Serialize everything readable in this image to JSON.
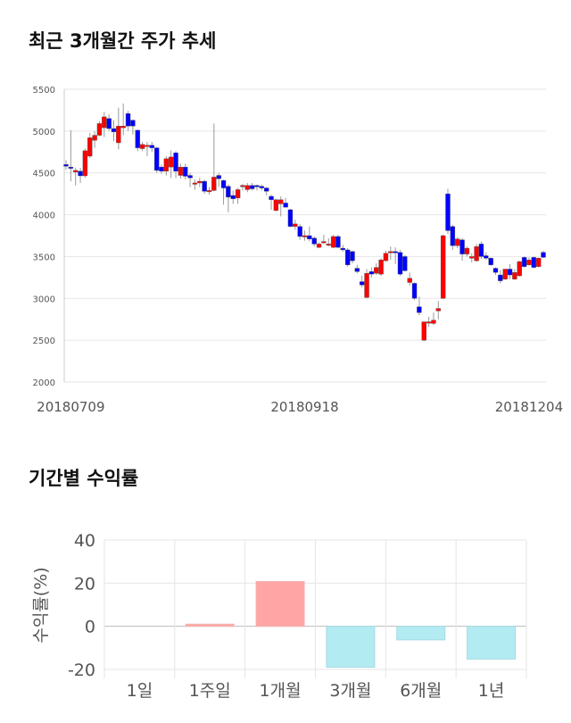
{
  "chart_data": [
    {
      "type": "candlestick",
      "title": "최근 3개월간 주가 추세",
      "ylim": [
        2000,
        5500
      ],
      "yticks": [
        "5500",
        "5000",
        "4500",
        "4000",
        "3500",
        "3000",
        "2500",
        "2000"
      ],
      "xtick_labels": [
        {
          "index": 1,
          "label": "20180709"
        },
        {
          "index": 50,
          "label": "20180918"
        },
        {
          "index": 97,
          "label": "20181204"
        }
      ],
      "grid": true,
      "up_color": "#ff0000",
      "down_color": "#0000ff",
      "ohlc": [
        [
          4600,
          4650,
          4540,
          4580
        ],
        [
          4570,
          5010,
          4400,
          4560
        ],
        [
          4510,
          4560,
          4350,
          4530
        ],
        [
          4520,
          4560,
          4380,
          4465
        ],
        [
          4465,
          4790,
          4440,
          4765
        ],
        [
          4700,
          4980,
          4680,
          4920
        ],
        [
          4890,
          5000,
          4800,
          4950
        ],
        [
          4950,
          5120,
          4940,
          5090
        ],
        [
          5040,
          5230,
          4930,
          5170
        ],
        [
          5150,
          5200,
          5000,
          5030
        ],
        [
          5030,
          5130,
          4880,
          4990
        ],
        [
          4860,
          5280,
          4780,
          5060
        ],
        [
          5040,
          5330,
          4950,
          5060
        ],
        [
          5210,
          5240,
          5000,
          5060
        ],
        [
          5130,
          5140,
          4960,
          5060
        ],
        [
          5010,
          5020,
          4760,
          4800
        ],
        [
          4790,
          4870,
          4760,
          4840
        ],
        [
          4820,
          4870,
          4700,
          4830
        ],
        [
          4830,
          4870,
          4750,
          4800
        ],
        [
          4800,
          4810,
          4500,
          4530
        ],
        [
          4570,
          4600,
          4490,
          4520
        ],
        [
          4520,
          4700,
          4470,
          4670
        ],
        [
          4570,
          4770,
          4440,
          4690
        ],
        [
          4740,
          4760,
          4440,
          4520
        ],
        [
          4470,
          4610,
          4430,
          4570
        ],
        [
          4570,
          4610,
          4420,
          4460
        ],
        [
          4470,
          4500,
          4330,
          4440
        ],
        [
          4380,
          4420,
          4300,
          4380
        ],
        [
          4380,
          4440,
          4330,
          4400
        ],
        [
          4400,
          4420,
          4250,
          4280
        ],
        [
          4280,
          4330,
          4240,
          4290
        ],
        [
          4290,
          5090,
          4280,
          4450
        ],
        [
          4470,
          4500,
          4330,
          4430
        ],
        [
          4410,
          4420,
          4120,
          4320
        ],
        [
          4340,
          4360,
          4030,
          4210
        ],
        [
          4230,
          4290,
          4130,
          4190
        ],
        [
          4200,
          4320,
          4130,
          4300
        ],
        [
          4350,
          4370,
          4290,
          4350
        ],
        [
          4300,
          4380,
          4270,
          4350
        ],
        [
          4350,
          4380,
          4290,
          4310
        ],
        [
          4350,
          4360,
          4290,
          4340
        ],
        [
          4340,
          4360,
          4290,
          4320
        ],
        [
          4320,
          4330,
          4230,
          4280
        ],
        [
          4220,
          4240,
          4060,
          4180
        ],
        [
          4050,
          4190,
          4040,
          4180
        ],
        [
          4130,
          4220,
          3980,
          4180
        ],
        [
          4140,
          4200,
          4090,
          4090
        ],
        [
          4060,
          4070,
          3850,
          3860
        ],
        [
          3860,
          3940,
          3820,
          3890
        ],
        [
          3860,
          3890,
          3700,
          3740
        ],
        [
          3740,
          3810,
          3690,
          3750
        ],
        [
          3750,
          3860,
          3680,
          3710
        ],
        [
          3720,
          3740,
          3620,
          3650
        ],
        [
          3610,
          3670,
          3600,
          3650
        ],
        [
          3670,
          3760,
          3650,
          3680
        ],
        [
          3640,
          3720,
          3620,
          3650
        ],
        [
          3610,
          3760,
          3600,
          3740
        ],
        [
          3740,
          3760,
          3600,
          3610
        ],
        [
          3600,
          3640,
          3560,
          3580
        ],
        [
          3580,
          3600,
          3380,
          3400
        ],
        [
          3560,
          3570,
          3420,
          3450
        ],
        [
          3360,
          3400,
          3300,
          3320
        ],
        [
          3200,
          3270,
          3130,
          3160
        ],
        [
          3010,
          3350,
          3000,
          3300
        ],
        [
          3320,
          3370,
          3250,
          3290
        ],
        [
          3300,
          3420,
          3280,
          3370
        ],
        [
          3290,
          3480,
          3270,
          3460
        ],
        [
          3450,
          3570,
          3440,
          3540
        ],
        [
          3550,
          3620,
          3460,
          3560
        ],
        [
          3560,
          3610,
          3410,
          3550
        ],
        [
          3550,
          3580,
          3270,
          3290
        ],
        [
          3500,
          3520,
          3320,
          3330
        ],
        [
          3190,
          3310,
          3150,
          3240
        ],
        [
          3180,
          3190,
          2980,
          3000
        ],
        [
          2900,
          3020,
          2800,
          2830
        ],
        [
          2500,
          2720,
          2490,
          2720
        ],
        [
          2710,
          2780,
          2660,
          2720
        ],
        [
          2700,
          2830,
          2680,
          2740
        ],
        [
          2850,
          2970,
          2750,
          2880
        ],
        [
          3000,
          3760,
          2990,
          3750
        ],
        [
          4250,
          4310,
          3770,
          3810
        ],
        [
          3860,
          3880,
          3580,
          3630
        ],
        [
          3630,
          3730,
          3600,
          3710
        ],
        [
          3700,
          3720,
          3450,
          3530
        ],
        [
          3530,
          3620,
          3500,
          3600
        ],
        [
          3480,
          3540,
          3430,
          3500
        ],
        [
          3450,
          3650,
          3440,
          3620
        ],
        [
          3650,
          3680,
          3470,
          3500
        ],
        [
          3510,
          3550,
          3460,
          3480
        ],
        [
          3480,
          3490,
          3390,
          3400
        ],
        [
          3360,
          3370,
          3280,
          3310
        ],
        [
          3280,
          3340,
          3180,
          3210
        ],
        [
          3230,
          3350,
          3220,
          3350
        ],
        [
          3350,
          3410,
          3230,
          3280
        ],
        [
          3230,
          3350,
          3220,
          3310
        ],
        [
          3270,
          3450,
          3260,
          3440
        ],
        [
          3490,
          3500,
          3370,
          3380
        ],
        [
          3400,
          3490,
          3390,
          3460
        ],
        [
          3490,
          3500,
          3360,
          3370
        ],
        [
          3380,
          3490,
          3370,
          3480
        ],
        [
          3550,
          3570,
          3480,
          3490
        ]
      ]
    },
    {
      "type": "bar",
      "title": "기간별 수익률",
      "ylabel": "수익률(%)",
      "ylim": [
        -20,
        40
      ],
      "yticks": [
        "40",
        "20",
        "0",
        "-20"
      ],
      "categories": [
        "1일",
        "1주일",
        "1개월",
        "3개월",
        "6개월",
        "1년"
      ],
      "values": [
        0,
        1.0,
        20.8,
        -19.0,
        -6.3,
        -15.2
      ],
      "positive_color": "#ffa5a5",
      "negative_color": "#b2ebf2",
      "grid": true
    }
  ]
}
